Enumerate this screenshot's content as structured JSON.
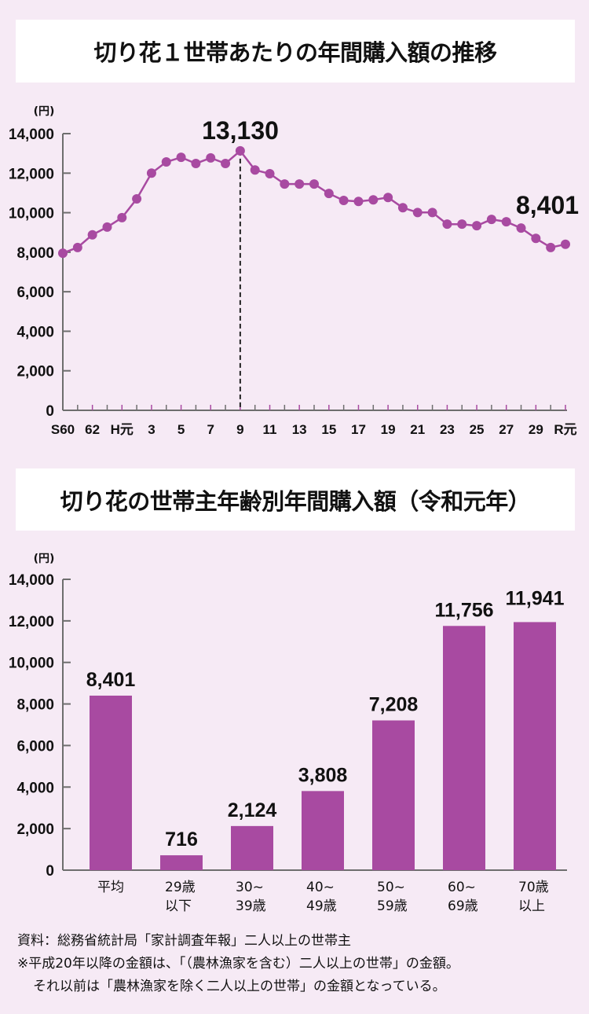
{
  "colors": {
    "background": "#f6eaf5",
    "accent": "#a84aa1",
    "axis": "#6e6e6e",
    "title_bg": "#ffffff"
  },
  "chart1": {
    "title": "切り花１世帯あたりの年間購入額の推移",
    "unit": "(円)",
    "highlight_max": "13,130",
    "highlight_last": "8,401"
  },
  "chart2": {
    "title": "切り花の世帯主年齢別年間購入額（令和元年）",
    "unit": "(円)"
  },
  "notes": {
    "source": "資料：総務省統計局「家計調査年報」二人以上の世帯主",
    "note1": "※平成20年以降の金額は、「（農林漁家を含む）二人以上の世帯」の金額。",
    "note2": "それ以前は「農林漁家を除く二人以上の世帯」の金額となっている。"
  },
  "chart_data": [
    {
      "type": "line",
      "title": "切り花１世帯あたりの年間購入額の推移",
      "xlabel": "",
      "ylabel": "(円)",
      "ylim": [
        0,
        14000
      ],
      "yticks": [
        0,
        2000,
        4000,
        6000,
        8000,
        10000,
        12000,
        14000
      ],
      "ytick_labels": [
        "0",
        "2,000",
        "4,000",
        "6,000",
        "8,000",
        "10,000",
        "12,000",
        "14,000"
      ],
      "grid": false,
      "legend": null,
      "x": [
        "S60",
        "S61",
        "62",
        "S63",
        "H元",
        "H2",
        "3",
        "H4",
        "5",
        "H6",
        "7",
        "H8",
        "9",
        "H10",
        "11",
        "H12",
        "13",
        "H14",
        "15",
        "H16",
        "17",
        "H18",
        "19",
        "H20",
        "21",
        "H22",
        "23",
        "H24",
        "25",
        "H26",
        "27",
        "H28",
        "29",
        "H30",
        "R元"
      ],
      "xtick_labels_shown": [
        "S60",
        "62",
        "H元",
        "3",
        "5",
        "7",
        "9",
        "11",
        "13",
        "15",
        "17",
        "19",
        "21",
        "23",
        "25",
        "27",
        "29",
        "R元"
      ],
      "xtick_label_indices": [
        0,
        2,
        4,
        6,
        8,
        10,
        12,
        14,
        16,
        18,
        20,
        22,
        24,
        26,
        28,
        30,
        32,
        34
      ],
      "series": [
        {
          "name": "年間購入額",
          "color": "#a84aa1",
          "values": [
            7950,
            8240,
            8880,
            9270,
            9750,
            10700,
            12000,
            12570,
            12800,
            12490,
            12770,
            12490,
            13130,
            12160,
            11970,
            11450,
            11450,
            11450,
            10970,
            10620,
            10570,
            10650,
            10770,
            10250,
            10010,
            10010,
            9420,
            9420,
            9340,
            9660,
            9540,
            9220,
            8700,
            8240,
            8401
          ]
        }
      ],
      "annotations": [
        {
          "text": "13,130",
          "x_index": 12,
          "value": 13130,
          "dashed_line": true
        },
        {
          "text": "8,401",
          "x_index": 34,
          "value": 8401
        }
      ]
    },
    {
      "type": "bar",
      "title": "切り花の世帯主年齢別年間購入額（令和元年）",
      "xlabel": "",
      "ylabel": "(円)",
      "ylim": [
        0,
        14000
      ],
      "yticks": [
        0,
        2000,
        4000,
        6000,
        8000,
        10000,
        12000,
        14000
      ],
      "ytick_labels": [
        "0",
        "2,000",
        "4,000",
        "6,000",
        "8,000",
        "10,000",
        "12,000",
        "14,000"
      ],
      "grid": false,
      "legend": null,
      "categories": [
        [
          "平均"
        ],
        [
          "29歳",
          "以下"
        ],
        [
          "30~",
          "39歳"
        ],
        [
          "40~",
          "49歳"
        ],
        [
          "50~",
          "59歳"
        ],
        [
          "60~",
          "69歳"
        ],
        [
          "70歳",
          "以上"
        ]
      ],
      "values": [
        8401,
        716,
        2124,
        3808,
        7208,
        11756,
        11941
      ],
      "value_labels": [
        "8,401",
        "716",
        "2,124",
        "3,808",
        "7,208",
        "11,756",
        "11,941"
      ],
      "color": "#a84aa1"
    }
  ]
}
